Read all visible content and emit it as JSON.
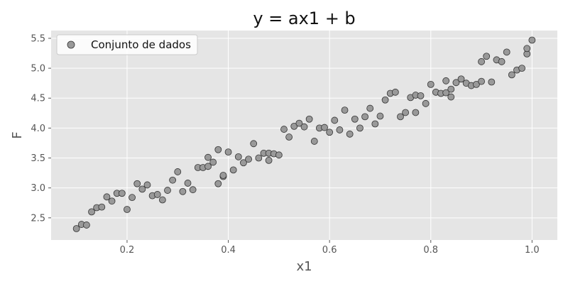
{
  "chart_data": {
    "type": "scatter",
    "title": "y = ax1 + b",
    "xlabel": "x1",
    "ylabel": "F",
    "xlim": [
      0.05,
      1.05
    ],
    "ylim": [
      2.13,
      5.63
    ],
    "xticks": [
      0.2,
      0.4,
      0.6,
      0.8,
      1.0
    ],
    "xtick_labels": [
      "0.2",
      "0.4",
      "0.6",
      "0.8",
      "1.0"
    ],
    "yticks": [
      2.5,
      3.0,
      3.5,
      4.0,
      4.5,
      5.0,
      5.5
    ],
    "ytick_labels": [
      "2.5",
      "3.0",
      "3.5",
      "4.0",
      "4.5",
      "5.0",
      "5.5"
    ],
    "grid": true,
    "legend_position": "top-left",
    "series": [
      {
        "name": "Conjunto de dados",
        "color": "#999999",
        "edge_color": "#333333",
        "points": [
          [
            0.1,
            2.32
          ],
          [
            0.11,
            2.39
          ],
          [
            0.12,
            2.38
          ],
          [
            0.13,
            2.6
          ],
          [
            0.14,
            2.67
          ],
          [
            0.15,
            2.68
          ],
          [
            0.16,
            2.85
          ],
          [
            0.17,
            2.78
          ],
          [
            0.18,
            2.91
          ],
          [
            0.19,
            2.91
          ],
          [
            0.2,
            2.64
          ],
          [
            0.21,
            2.84
          ],
          [
            0.22,
            3.07
          ],
          [
            0.23,
            2.98
          ],
          [
            0.24,
            3.05
          ],
          [
            0.25,
            2.87
          ],
          [
            0.26,
            2.89
          ],
          [
            0.27,
            2.8
          ],
          [
            0.28,
            2.96
          ],
          [
            0.29,
            3.13
          ],
          [
            0.3,
            3.27
          ],
          [
            0.31,
            2.94
          ],
          [
            0.32,
            3.08
          ],
          [
            0.33,
            2.97
          ],
          [
            0.34,
            3.34
          ],
          [
            0.35,
            3.34
          ],
          [
            0.36,
            3.36
          ],
          [
            0.37,
            3.43
          ],
          [
            0.38,
            3.07
          ],
          [
            0.39,
            3.19
          ],
          [
            0.36,
            3.51
          ],
          [
            0.38,
            3.64
          ],
          [
            0.39,
            3.21
          ],
          [
            0.4,
            3.6
          ],
          [
            0.41,
            3.3
          ],
          [
            0.42,
            3.52
          ],
          [
            0.43,
            3.42
          ],
          [
            0.44,
            3.48
          ],
          [
            0.45,
            3.74
          ],
          [
            0.46,
            3.5
          ],
          [
            0.47,
            3.58
          ],
          [
            0.48,
            3.58
          ],
          [
            0.48,
            3.46
          ],
          [
            0.49,
            3.57
          ],
          [
            0.5,
            3.55
          ],
          [
            0.51,
            3.98
          ],
          [
            0.52,
            3.85
          ],
          [
            0.53,
            4.03
          ],
          [
            0.54,
            4.08
          ],
          [
            0.55,
            4.02
          ],
          [
            0.56,
            4.15
          ],
          [
            0.57,
            3.78
          ],
          [
            0.58,
            4.0
          ],
          [
            0.59,
            4.01
          ],
          [
            0.6,
            3.93
          ],
          [
            0.61,
            4.13
          ],
          [
            0.62,
            3.97
          ],
          [
            0.63,
            4.3
          ],
          [
            0.64,
            3.9
          ],
          [
            0.65,
            4.15
          ],
          [
            0.66,
            4.0
          ],
          [
            0.67,
            4.19
          ],
          [
            0.68,
            4.33
          ],
          [
            0.69,
            4.07
          ],
          [
            0.7,
            4.2
          ],
          [
            0.71,
            4.47
          ],
          [
            0.72,
            4.58
          ],
          [
            0.73,
            4.6
          ],
          [
            0.74,
            4.19
          ],
          [
            0.75,
            4.26
          ],
          [
            0.76,
            4.51
          ],
          [
            0.77,
            4.26
          ],
          [
            0.77,
            4.55
          ],
          [
            0.78,
            4.54
          ],
          [
            0.79,
            4.41
          ],
          [
            0.8,
            4.73
          ],
          [
            0.81,
            4.6
          ],
          [
            0.82,
            4.58
          ],
          [
            0.83,
            4.59
          ],
          [
            0.84,
            4.52
          ],
          [
            0.83,
            4.79
          ],
          [
            0.84,
            4.65
          ],
          [
            0.85,
            4.76
          ],
          [
            0.86,
            4.82
          ],
          [
            0.87,
            4.75
          ],
          [
            0.88,
            4.71
          ],
          [
            0.89,
            4.73
          ],
          [
            0.9,
            4.78
          ],
          [
            0.9,
            5.11
          ],
          [
            0.91,
            5.2
          ],
          [
            0.92,
            4.77
          ],
          [
            0.93,
            5.14
          ],
          [
            0.94,
            5.11
          ],
          [
            0.95,
            5.27
          ],
          [
            0.96,
            4.89
          ],
          [
            0.97,
            4.97
          ],
          [
            0.98,
            5.0
          ],
          [
            0.99,
            5.24
          ],
          [
            0.99,
            5.33
          ],
          [
            1.0,
            5.47
          ]
        ]
      }
    ]
  }
}
